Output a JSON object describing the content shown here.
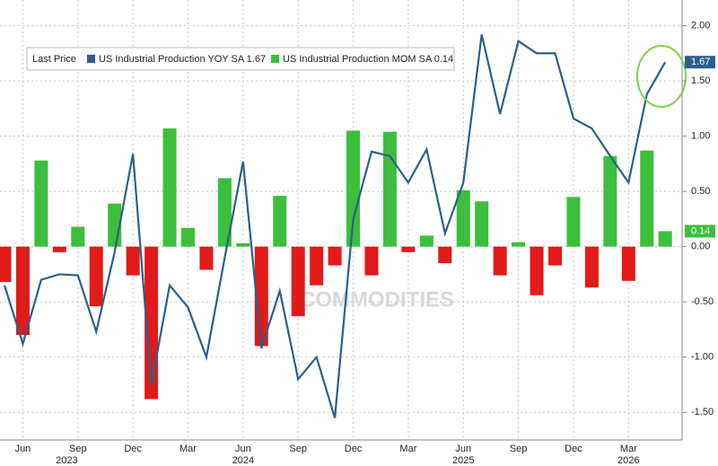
{
  "chart_data": {
    "type": "combo",
    "legend_title": "Last Price",
    "watermark": "COMMODITIES",
    "categories": [
      null,
      "Jun",
      null,
      null,
      "Sep",
      null,
      null,
      "Dec",
      null,
      null,
      "Mar",
      null,
      null,
      "Jun",
      null,
      null,
      "Sep",
      null,
      null,
      "Dec",
      null,
      null,
      "Mar",
      null,
      null,
      "Jun",
      null,
      null,
      "Sep",
      null,
      null,
      "Dec",
      null,
      null,
      "Mar",
      null,
      null
    ],
    "year_categories": [
      null,
      null,
      null,
      "2023",
      null,
      null,
      null,
      null,
      null,
      null,
      null,
      null,
      null,
      "2024",
      null,
      null,
      null,
      null,
      null,
      null,
      null,
      null,
      null,
      null,
      null,
      "2025",
      null,
      null,
      null,
      null,
      null,
      null,
      null,
      null,
      "2026",
      null,
      null
    ],
    "series": [
      {
        "name": "US Industrial Production MOM SA 0.14",
        "type": "bar",
        "color": "#3cbf3c",
        "negative_color": "#e21a1a",
        "values": [
          -0.32,
          -0.8,
          0.78,
          -0.05,
          0.18,
          -0.54,
          0.39,
          -0.26,
          -1.38,
          1.07,
          0.17,
          -0.21,
          0.62,
          0.03,
          -0.9,
          0.46,
          -0.63,
          -0.35,
          -0.17,
          1.05,
          -0.26,
          1.04,
          -0.05,
          0.1,
          -0.15,
          0.51,
          0.41,
          -0.26,
          0.04,
          -0.44,
          -0.17,
          0.45,
          -0.37,
          0.82,
          -0.31,
          0.87,
          0.14
        ],
        "last_label": "0.14"
      },
      {
        "name": "US Industrial Production YOY SA 1.67",
        "type": "line",
        "color": "#2d5f8b",
        "values": [
          -0.35,
          -0.88,
          -0.3,
          -0.25,
          -0.26,
          -0.77,
          -0.05,
          0.84,
          -1.25,
          -0.35,
          -0.55,
          -1.0,
          -0.1,
          0.77,
          -0.92,
          -0.4,
          -1.2,
          -1.0,
          -1.55,
          0.25,
          0.86,
          0.82,
          0.58,
          0.88,
          0.12,
          0.58,
          1.92,
          1.2,
          1.86,
          1.75,
          1.75,
          1.16,
          1.07,
          0.82,
          0.58,
          1.38,
          1.67
        ],
        "last_label": "1.67"
      }
    ],
    "ylim": [
      -1.75,
      2.2
    ],
    "yticks": [
      {
        "value": 2,
        "label": "2.00"
      },
      {
        "value": 1.5,
        "label": "1.50"
      },
      {
        "value": 1,
        "label": "1.00"
      },
      {
        "value": 0.5,
        "label": "0.50"
      },
      {
        "value": 0,
        "label": "0.00"
      },
      {
        "value": -0.5,
        "label": "-0.50"
      },
      {
        "value": -1,
        "label": "-1.00"
      },
      {
        "value": -1.5,
        "label": "-1.50"
      }
    ],
    "grid": true
  }
}
